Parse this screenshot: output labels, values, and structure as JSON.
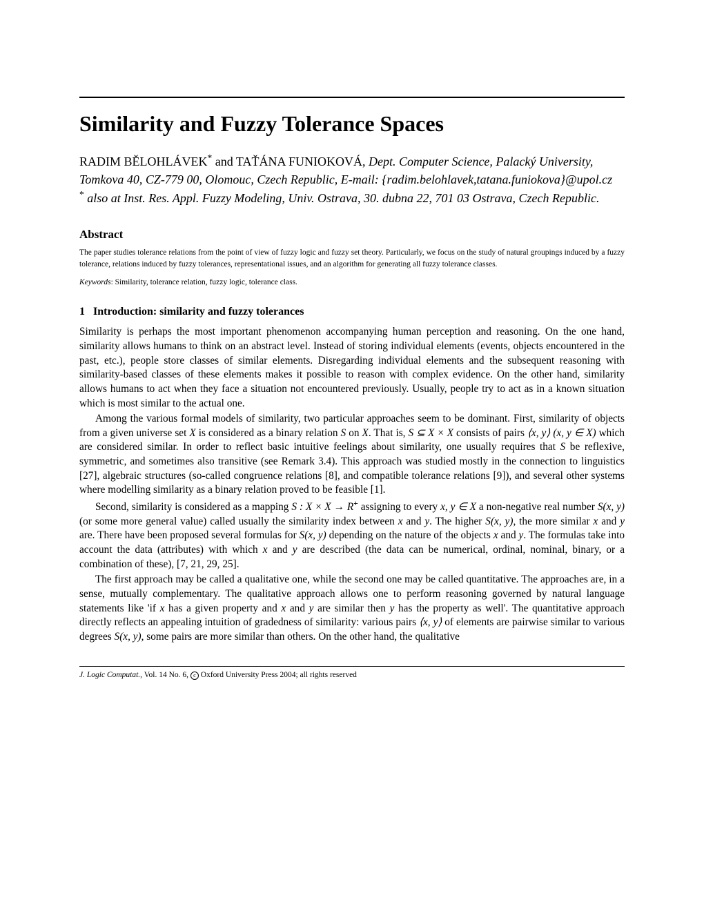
{
  "title": "Similarity and Fuzzy Tolerance Spaces",
  "authors_line1_name1": "RADIM BĚLOHLÁVEK",
  "authors_line1_star": "*",
  "authors_line1_and": " and ",
  "authors_line1_name2": "TAŤÁNA FUNIOKOVÁ, ",
  "authors_affil1": "Dept. Computer Science, Palacký University, Tomkova 40, CZ-779 00, Olomouc, Czech Republic, E-mail: {radim.belohlavek,tatana.funiokova}@upol.cz",
  "authors_footnote_marker": "*",
  "authors_footnote": " also at Inst. Res. Appl. Fuzzy Modeling, Univ. Ostrava, 30. dubna 22, 701 03 Ostrava, Czech Republic.",
  "abstract": {
    "heading": "Abstract",
    "text": "The paper studies tolerance relations from the point of view of fuzzy logic and fuzzy set theory. Particularly, we focus on the study of natural groupings induced by a fuzzy tolerance, relations induced by fuzzy tolerances, representational issues, and an algorithm for generating all fuzzy tolerance classes."
  },
  "keywords": {
    "label": "Keywords",
    "text": ": Similarity, tolerance relation, fuzzy logic, tolerance class."
  },
  "section1": {
    "number": "1",
    "title": "Introduction: similarity and fuzzy tolerances"
  },
  "paragraphs": {
    "p1": "Similarity is perhaps the most important phenomenon accompanying human perception and reasoning. On the one hand, similarity allows humans to think on an abstract level. Instead of storing individual elements (events, objects encountered in the past, etc.), people store classes of similar elements. Disregarding individual elements and the subsequent reasoning with similarity-based classes of these elements makes it possible to reason with complex evidence. On the other hand, similarity allows humans to act when they face a situation not encountered previously. Usually, people try to act as in a known situation which is most similar to the actual one.",
    "p2a": "Among the various formal models of similarity, two particular approaches seem to be dominant. First, similarity of objects from a given universe set ",
    "p2b": " is considered as a binary relation ",
    "p2c": " on ",
    "p2d": ". That is, ",
    "p2e": " consists of pairs ",
    "p2f": " which are considered similar. In order to reflect basic intuitive feelings about similarity, one usually requires that ",
    "p2g": " be reflexive, symmetric, and sometimes also transitive (see Remark 3.4). This approach was studied mostly in the connection to linguistics [27], algebraic structures (so-called congruence relations [8], and compatible tolerance relations [9]), and several other systems where modelling similarity as a binary relation proved to be feasible [1].",
    "p3a": "Second, similarity is considered as a mapping ",
    "p3b": " assigning to every ",
    "p3c": " a non-negative real number ",
    "p3d": " (or some more general value) called usually the similarity index between ",
    "p3e": " and ",
    "p3f": ". The higher ",
    "p3g": ", the more similar ",
    "p3h": " and ",
    "p3i": " are. There have been proposed several formulas for ",
    "p3j": " depending on the nature of the objects ",
    "p3k": " and ",
    "p3l": ". The formulas take into account the data (attributes) with which ",
    "p3m": " and ",
    "p3n": " are described (the data can be numerical, ordinal, nominal, binary, or a combination of these), [7, 21, 29, 25].",
    "p4a": "The first approach may be called a qualitative one, while the second one may be called quantitative. The approaches are, in a sense, mutually complementary. The qualitative approach allows one to perform reasoning governed by natural language statements like 'if ",
    "p4b": " has a given property and ",
    "p4c": " and ",
    "p4d": " are similar then ",
    "p4e": " has the property as well'. The quantitative approach directly reflects an appealing intuition of gradedness of similarity: various pairs ",
    "p4f": " of elements are pairwise similar to various degrees ",
    "p4g": ", some pairs are more similar than others. On the other hand, the qualitative"
  },
  "math": {
    "X": "X",
    "S": "S",
    "SsubXxX": "S ⊆ X × X",
    "pairxy": "⟨x, y⟩",
    "xyinX": "(x, y ∈ X)",
    "SmapXxXR": "S : X × X → R",
    "plus": "+",
    "xyinX2": "x, y ∈ X",
    "Sxy": "S(x, y)",
    "x": "x",
    "y": "y"
  },
  "footer": {
    "journal": "J. Logic Computat.",
    "vol": ", Vol. 14 No. 6, ",
    "c": "c",
    "publisher": " Oxford University Press 2004; all rights reserved"
  }
}
